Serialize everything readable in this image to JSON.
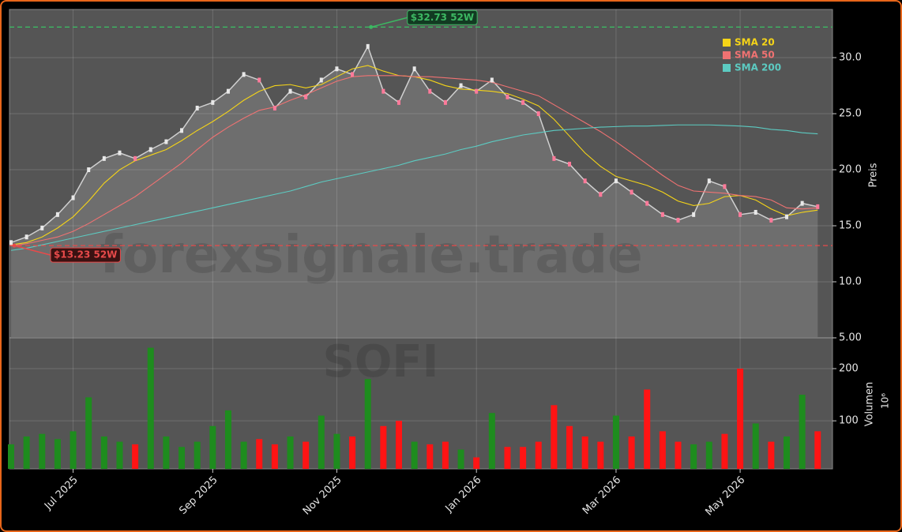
{
  "chart_data": [
    {
      "type": "line",
      "categories": [
        null,
        null,
        null,
        null,
        "Jul 2025",
        null,
        null,
        null,
        null,
        null,
        null,
        null,
        null,
        "Sep 2025",
        null,
        null,
        null,
        null,
        null,
        null,
        null,
        "Nov 2025",
        null,
        null,
        null,
        null,
        null,
        null,
        null,
        null,
        "Jan 2026",
        null,
        null,
        null,
        null,
        null,
        null,
        null,
        null,
        "Mar 2026",
        null,
        null,
        null,
        null,
        null,
        null,
        null,
        "May 2026",
        null,
        null,
        null,
        null,
        null
      ],
      "series": [
        {
          "color": "#d0d0d0",
          "values": [
            13.5,
            14.0,
            14.8,
            16.0,
            17.5,
            20.0,
            21.0,
            21.5,
            21.0,
            21.8,
            22.5,
            23.5,
            25.5,
            26.0,
            27.0,
            28.5,
            28.0,
            25.5,
            27.0,
            26.5,
            28.0,
            29.0,
            28.5,
            31.0,
            27.0,
            26.0,
            29.0,
            27.0,
            26.0,
            27.5,
            27.0,
            28.0,
            26.5,
            26.0,
            25.0,
            21.0,
            20.5,
            19.0,
            17.8,
            19.0,
            18.0,
            17.0,
            16.0,
            15.5,
            16.0,
            19.0,
            18.5,
            16.0,
            16.2,
            15.5,
            15.8,
            17.0,
            16.7
          ]
        },
        {
          "name": "SMA 20",
          "color": "#f5d418",
          "values": [
            13.3,
            13.5,
            14.0,
            14.8,
            15.8,
            17.2,
            18.8,
            20.0,
            20.8,
            21.3,
            21.8,
            22.6,
            23.5,
            24.3,
            25.2,
            26.2,
            27.0,
            27.5,
            27.6,
            27.3,
            27.6,
            28.3,
            29.0,
            29.3,
            28.8,
            28.4,
            28.3,
            28.0,
            27.5,
            27.2,
            27.1,
            27.0,
            26.8,
            26.3,
            25.7,
            24.5,
            23.0,
            21.5,
            20.3,
            19.4,
            19.0,
            18.6,
            18.0,
            17.2,
            16.8,
            17.0,
            17.6,
            17.7,
            17.3,
            16.5,
            15.9,
            16.2,
            16.4
          ]
        },
        {
          "name": "SMA 50",
          "color": "#f07272",
          "values": [
            13.2,
            13.4,
            13.7,
            14.0,
            14.5,
            15.2,
            16.0,
            16.8,
            17.6,
            18.6,
            19.6,
            20.6,
            21.8,
            22.9,
            23.8,
            24.6,
            25.3,
            25.6,
            26.2,
            26.7,
            27.3,
            27.9,
            28.3,
            28.4,
            28.4,
            28.4,
            28.3,
            28.3,
            28.2,
            28.1,
            28.0,
            27.8,
            27.4,
            27.0,
            26.6,
            25.8,
            25.0,
            24.2,
            23.4,
            22.5,
            21.5,
            20.5,
            19.5,
            18.6,
            18.1,
            18.0,
            17.9,
            17.7,
            17.6,
            17.3,
            16.6,
            16.5,
            16.6
          ]
        },
        {
          "name": "SMA 200",
          "color": "#5ccbc2",
          "values": [
            12.8,
            13.0,
            13.3,
            13.6,
            13.9,
            14.2,
            14.5,
            14.8,
            15.1,
            15.4,
            15.7,
            16.0,
            16.3,
            16.6,
            16.9,
            17.2,
            17.5,
            17.8,
            18.1,
            18.5,
            18.9,
            19.2,
            19.5,
            19.8,
            20.1,
            20.4,
            20.8,
            21.1,
            21.4,
            21.8,
            22.1,
            22.5,
            22.8,
            23.1,
            23.3,
            23.5,
            23.6,
            23.7,
            23.8,
            23.85,
            23.9,
            23.9,
            23.95,
            24.0,
            24.0,
            24.0,
            23.95,
            23.9,
            23.8,
            23.6,
            23.5,
            23.3,
            23.2
          ]
        }
      ],
      "ylim": [
        5,
        34.3
      ],
      "yticks": [
        {
          "value": 5,
          "label": "5.00"
        },
        {
          "value": 10,
          "label": "10.0"
        },
        {
          "value": 15,
          "label": "15.0"
        },
        {
          "value": 20,
          "label": "20.0"
        },
        {
          "value": 25,
          "label": "25.0"
        },
        {
          "value": 30,
          "label": "30.0"
        }
      ],
      "ylabel": "Preis",
      "grid": true,
      "legend": "upper right",
      "annotations": [
        {
          "text": "$32.73 52W",
          "value": 32.73,
          "kind": "max",
          "color": "#3cb862"
        },
        {
          "text": "$13.23 52W",
          "value": 13.23,
          "kind": "min",
          "color": "#e84a4a"
        }
      ],
      "watermark": "forexsignale.trade",
      "symbol": "SOFI"
    },
    {
      "type": "bar",
      "values": [
        55,
        70,
        75,
        65,
        80,
        145,
        70,
        60,
        55,
        240,
        70,
        50,
        60,
        90,
        120,
        60,
        65,
        55,
        70,
        60,
        110,
        75,
        70,
        180,
        90,
        100,
        60,
        55,
        60,
        45,
        30,
        115,
        50,
        50,
        60,
        130,
        90,
        70,
        60,
        110,
        70,
        160,
        80,
        60,
        55,
        60,
        75,
        200,
        95,
        60,
        70,
        150,
        80
      ],
      "up_color": "#1e8c1e",
      "down_color": "#ff1414",
      "ylim": [
        8,
        259
      ],
      "yticks": [
        100,
        200
      ],
      "ylabel": "Volumen",
      "yunit": "10⁶"
    }
  ]
}
